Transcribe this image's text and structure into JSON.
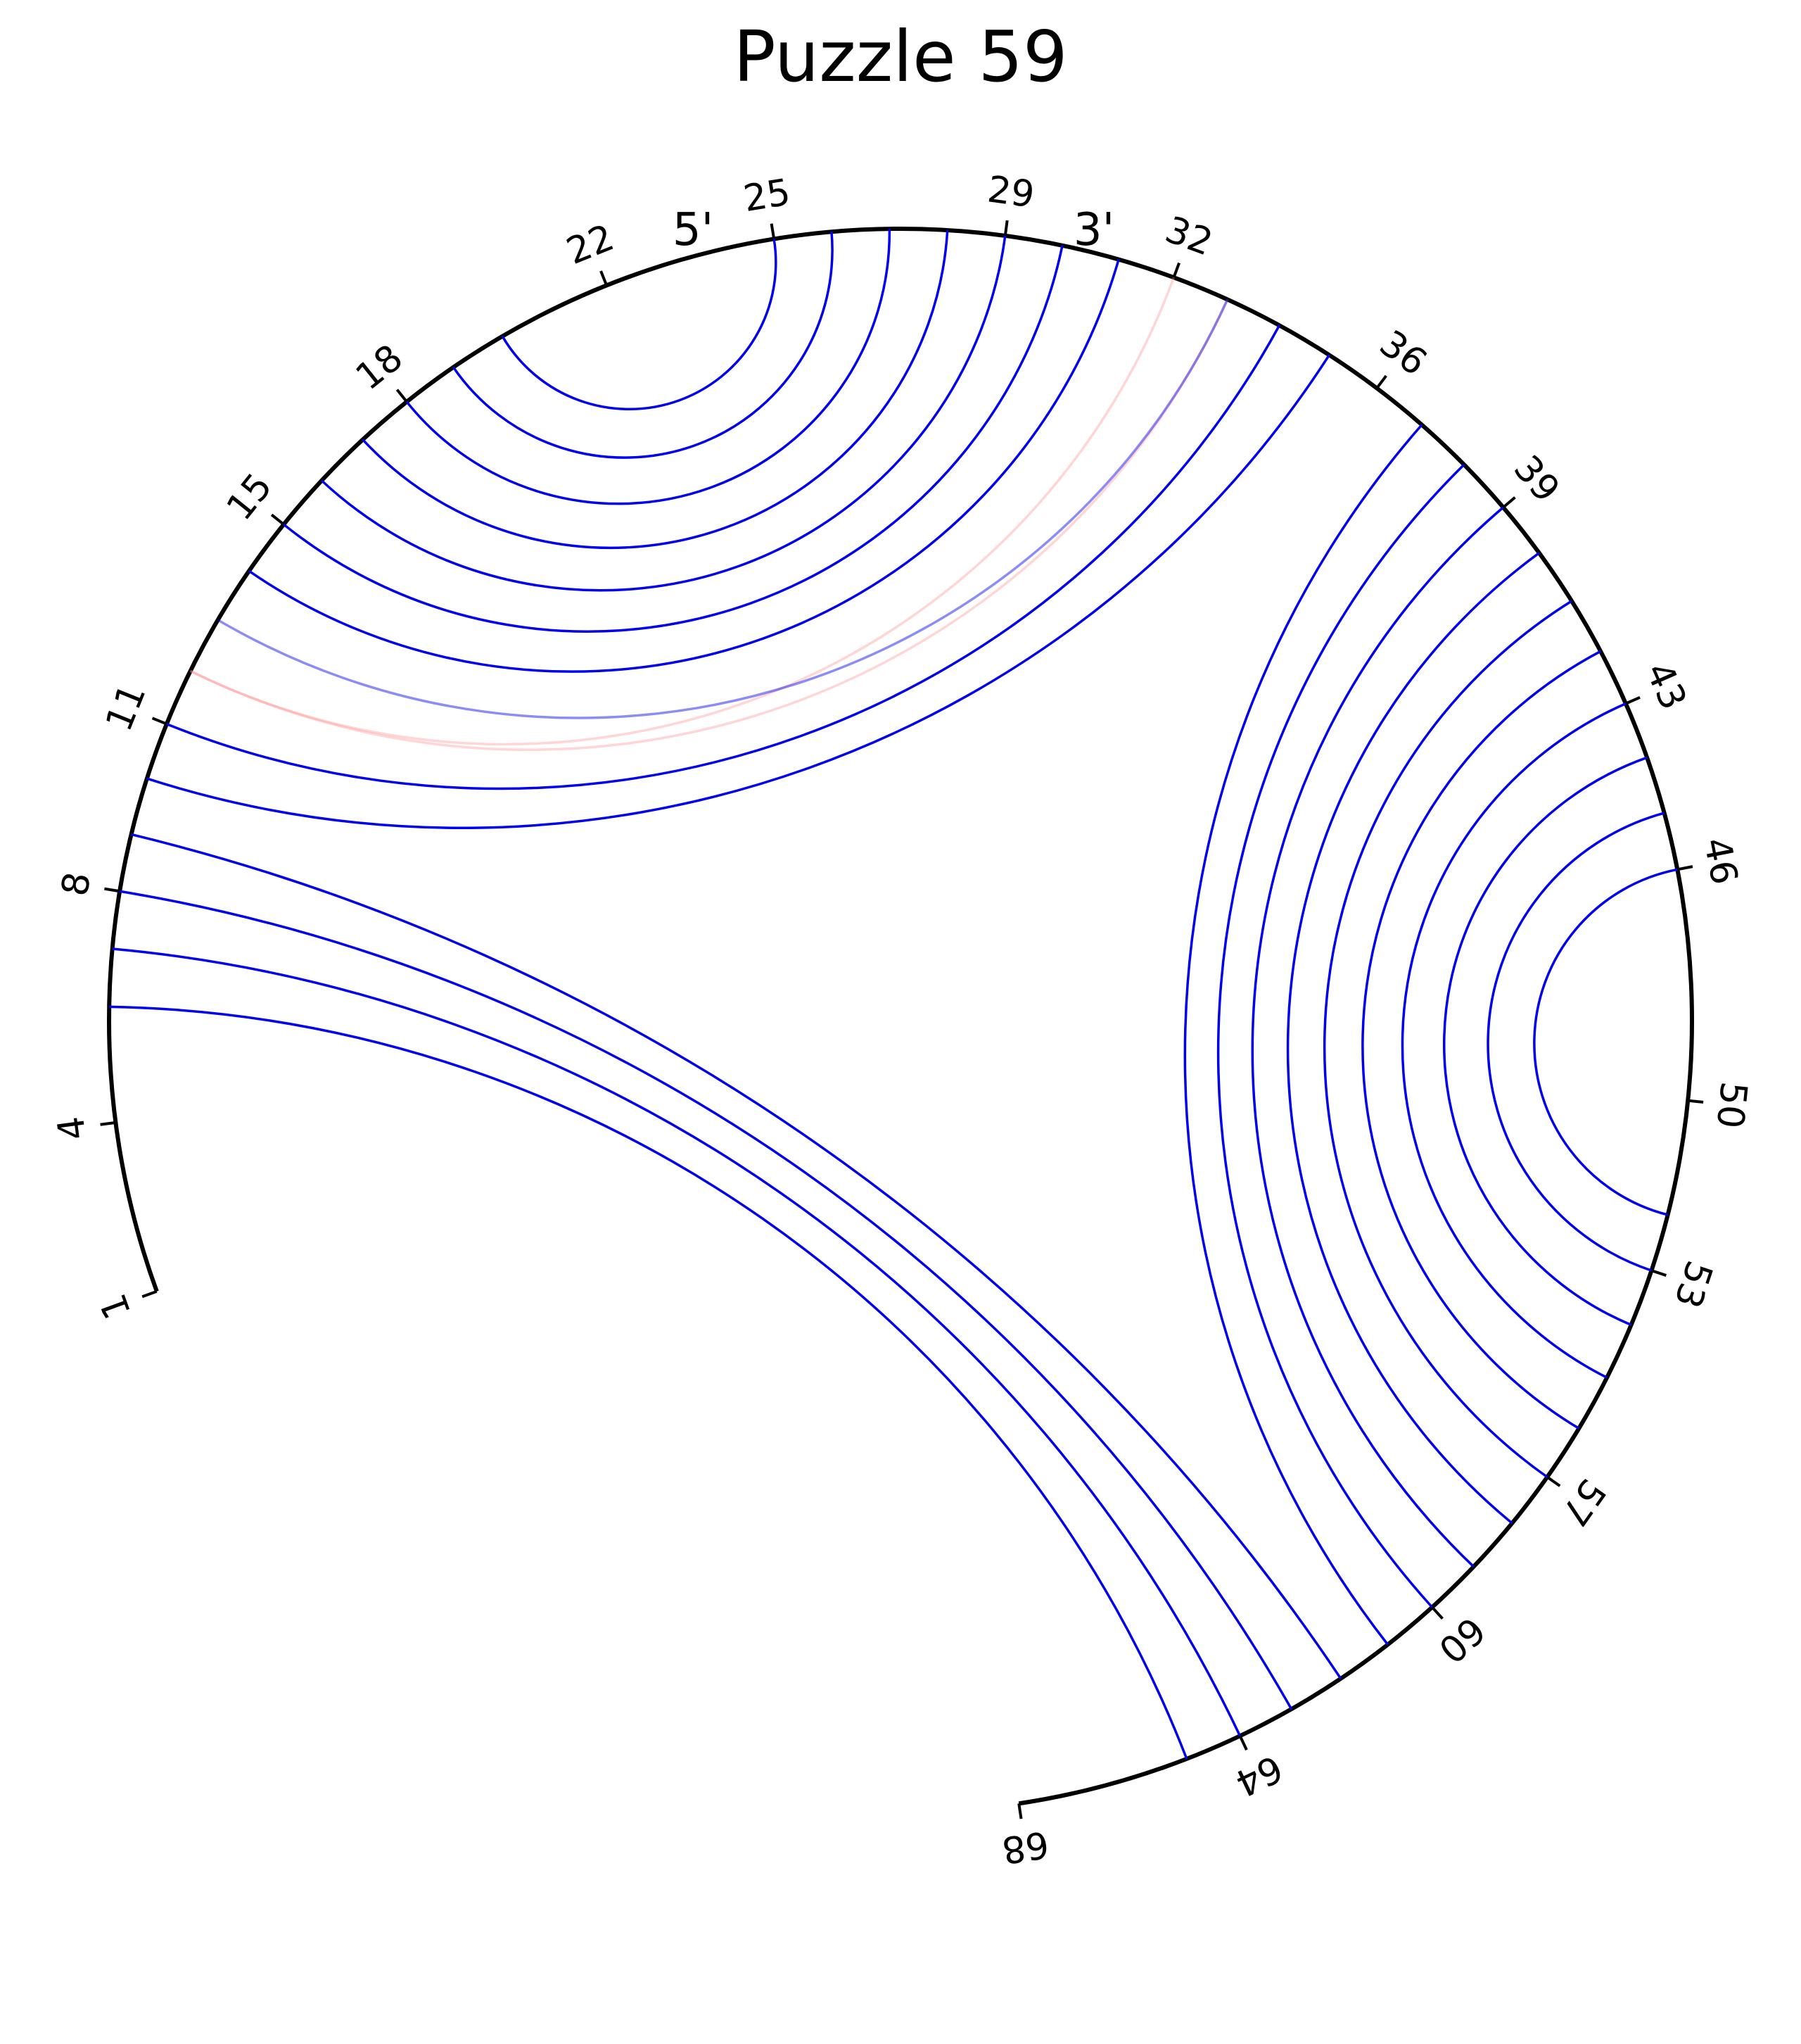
{
  "title": "Puzzle 59",
  "five_prime_label": "5'",
  "three_prime_label": "3'",
  "sequence_length": 68,
  "tick_labels": [
    "1",
    "4",
    "8",
    "11",
    "15",
    "18",
    "22",
    "25",
    "29",
    "32",
    "36",
    "39",
    "43",
    "46",
    "50",
    "53",
    "57",
    "60",
    "64",
    "68"
  ],
  "pairs": [
    {
      "i": 6,
      "j": 65,
      "color": "#0000ee",
      "opacity": 1
    },
    {
      "i": 7,
      "j": 64,
      "color": "#0000ee",
      "opacity": 1
    },
    {
      "i": 8,
      "j": 63,
      "color": "#0000ee",
      "opacity": 1
    },
    {
      "i": 9,
      "j": 62,
      "color": "#0000ee",
      "opacity": 1
    },
    {
      "i": 10,
      "j": 35,
      "color": "#0000ee",
      "opacity": 1
    },
    {
      "i": 11,
      "j": 34,
      "color": "#0000ee",
      "opacity": 1
    },
    {
      "i": 12,
      "j": 32,
      "color": "#ff8888",
      "opacity": 0.35
    },
    {
      "i": 12,
      "j": 33,
      "color": "#ff8888",
      "opacity": 0.35
    },
    {
      "i": 13,
      "j": 33,
      "color": "#0000ee",
      "opacity": 0.45
    },
    {
      "i": 14,
      "j": 31,
      "color": "#0000ee",
      "opacity": 1
    },
    {
      "i": 15,
      "j": 30,
      "color": "#0000ee",
      "opacity": 1
    },
    {
      "i": 16,
      "j": 29,
      "color": "#0000ee",
      "opacity": 1
    },
    {
      "i": 17,
      "j": 28,
      "color": "#0000ee",
      "opacity": 1
    },
    {
      "i": 18,
      "j": 27,
      "color": "#0000ee",
      "opacity": 1
    },
    {
      "i": 19,
      "j": 26,
      "color": "#0000ee",
      "opacity": 1
    },
    {
      "i": 20,
      "j": 25,
      "color": "#0000ee",
      "opacity": 1
    },
    {
      "i": 37,
      "j": 61,
      "color": "#0000ee",
      "opacity": 1
    },
    {
      "i": 38,
      "j": 60,
      "color": "#0000ee",
      "opacity": 1
    },
    {
      "i": 39,
      "j": 59,
      "color": "#0000ee",
      "opacity": 1
    },
    {
      "i": 40,
      "j": 58,
      "color": "#0000ee",
      "opacity": 1
    },
    {
      "i": 41,
      "j": 57,
      "color": "#0000ee",
      "opacity": 1
    },
    {
      "i": 42,
      "j": 56,
      "color": "#0000ee",
      "opacity": 1
    },
    {
      "i": 43,
      "j": 55,
      "color": "#0000ee",
      "opacity": 1
    },
    {
      "i": 44,
      "j": 54,
      "color": "#0000ee",
      "opacity": 1
    },
    {
      "i": 45,
      "j": 53,
      "color": "#0000ee",
      "opacity": 1
    },
    {
      "i": 46,
      "j": 52,
      "color": "#0000ee",
      "opacity": 1
    }
  ]
}
